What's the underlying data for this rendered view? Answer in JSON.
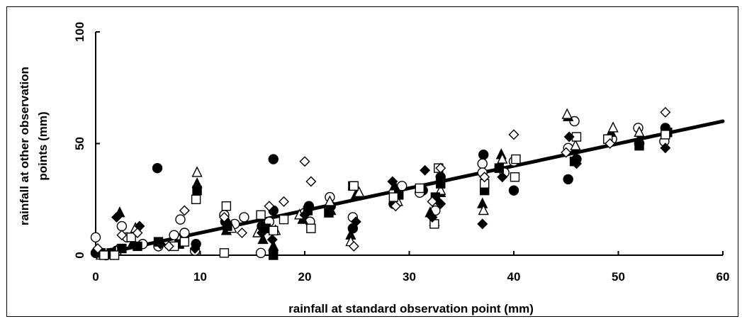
{
  "chart_data": {
    "type": "scatter",
    "xlabel": "rainfall at standard observation point (mm)",
    "ylabel_lines": [
      "rainfall at other observation",
      "points (mm)"
    ],
    "xlim": [
      0,
      60
    ],
    "ylim": [
      0,
      100
    ],
    "x_ticks": [
      0,
      10,
      20,
      30,
      40,
      50,
      60
    ],
    "y_ticks": [
      0,
      50,
      100
    ],
    "x_tick_labels": [
      "0",
      "10",
      "20",
      "30",
      "40",
      "50",
      "60"
    ],
    "y_tick_labels": [
      "0",
      "50",
      "100"
    ],
    "grid": false,
    "legend": "none",
    "trend_line": {
      "x": [
        0,
        60
      ],
      "y": [
        0,
        60
      ]
    },
    "series": [
      {
        "marker": "filled-circle",
        "points": [
          [
            0,
            1
          ],
          [
            1,
            0
          ],
          [
            2,
            2
          ],
          [
            5.9,
            39
          ],
          [
            9.6,
            5
          ],
          [
            12.4,
            15
          ],
          [
            15.9,
            13
          ],
          [
            17,
            43
          ],
          [
            17,
            20
          ],
          [
            20.4,
            22
          ],
          [
            22.5,
            22
          ],
          [
            24.6,
            12
          ],
          [
            28.5,
            23
          ],
          [
            31.3,
            29
          ],
          [
            33,
            35
          ],
          [
            37.1,
            45
          ],
          [
            40,
            29
          ],
          [
            45.2,
            34
          ],
          [
            46,
            43
          ],
          [
            52,
            50
          ],
          [
            54.5,
            57
          ]
        ]
      },
      {
        "marker": "open-circle",
        "points": [
          [
            0,
            8
          ],
          [
            0.5,
            1
          ],
          [
            1.5,
            1
          ],
          [
            2.5,
            13
          ],
          [
            3,
            8
          ],
          [
            4.5,
            5
          ],
          [
            6,
            4
          ],
          [
            7.5,
            9
          ],
          [
            8.1,
            16
          ],
          [
            8.5,
            10
          ],
          [
            9.5,
            2
          ],
          [
            12.3,
            18
          ],
          [
            13.3,
            14
          ],
          [
            14.2,
            17
          ],
          [
            15.8,
            1
          ],
          [
            16.6,
            15
          ],
          [
            20,
            19
          ],
          [
            20.5,
            15
          ],
          [
            22.4,
            26
          ],
          [
            24.6,
            17
          ],
          [
            28.5,
            28
          ],
          [
            29.3,
            31
          ],
          [
            31,
            28
          ],
          [
            32.5,
            20
          ],
          [
            37,
            41
          ],
          [
            37,
            37
          ],
          [
            39.1,
            37
          ],
          [
            40,
            42
          ],
          [
            45.2,
            48
          ],
          [
            45.8,
            60
          ],
          [
            49.4,
            52
          ],
          [
            51.9,
            57
          ],
          [
            54.4,
            51
          ]
        ]
      },
      {
        "marker": "filled-triangle",
        "points": [
          [
            2.3,
            19
          ],
          [
            3.5,
            5
          ],
          [
            9.7,
            32
          ],
          [
            12.5,
            11
          ],
          [
            16,
            7
          ],
          [
            17,
            4
          ],
          [
            19.8,
            16
          ],
          [
            22.5,
            20
          ],
          [
            24.4,
            9
          ],
          [
            24.9,
            27
          ],
          [
            28.6,
            31
          ],
          [
            32,
            19
          ],
          [
            33,
            28
          ],
          [
            37,
            23
          ],
          [
            38.8,
            45
          ],
          [
            45.2,
            62
          ],
          [
            46,
            48
          ],
          [
            49.3,
            55
          ],
          [
            52,
            52
          ]
        ]
      },
      {
        "marker": "open-triangle",
        "points": [
          [
            0.5,
            0
          ],
          [
            2,
            2
          ],
          [
            3.8,
            12
          ],
          [
            8,
            7
          ],
          [
            9.7,
            37
          ],
          [
            13,
            12
          ],
          [
            15.5,
            10
          ],
          [
            17.2,
            11
          ],
          [
            19.5,
            18
          ],
          [
            22.4,
            24
          ],
          [
            24.4,
            6
          ],
          [
            25.2,
            28
          ],
          [
            28.9,
            24
          ],
          [
            32.4,
            15
          ],
          [
            33,
            29
          ],
          [
            37.1,
            20
          ],
          [
            38.9,
            43
          ],
          [
            45.1,
            63
          ],
          [
            45.9,
            49
          ],
          [
            49.5,
            57
          ],
          [
            52,
            55
          ]
        ]
      },
      {
        "marker": "filled-square",
        "points": [
          [
            0.5,
            1
          ],
          [
            1.5,
            1
          ],
          [
            2.5,
            3
          ],
          [
            4,
            4
          ],
          [
            6,
            6
          ],
          [
            8,
            5
          ],
          [
            9.7,
            29
          ],
          [
            12.6,
            13
          ],
          [
            16.3,
            12
          ],
          [
            17,
            0
          ],
          [
            20.3,
            20
          ],
          [
            22.3,
            19
          ],
          [
            24.6,
            31
          ],
          [
            29,
            27
          ],
          [
            32.5,
            26
          ],
          [
            33,
            32
          ],
          [
            37.2,
            29
          ],
          [
            38.6,
            39
          ],
          [
            45.8,
            42
          ],
          [
            52,
            49
          ],
          [
            54.7,
            55
          ]
        ]
      },
      {
        "marker": "open-square",
        "points": [
          [
            0.8,
            0
          ],
          [
            1.8,
            0
          ],
          [
            3.4,
            8
          ],
          [
            7.5,
            4
          ],
          [
            8.5,
            6
          ],
          [
            9.6,
            25
          ],
          [
            12.3,
            1
          ],
          [
            12.5,
            22
          ],
          [
            15.8,
            18
          ],
          [
            17,
            11
          ],
          [
            18,
            16
          ],
          [
            20.6,
            12
          ],
          [
            24.7,
            31
          ],
          [
            28.5,
            26
          ],
          [
            31,
            30
          ],
          [
            32.4,
            14
          ],
          [
            32.8,
            39
          ],
          [
            37.2,
            32
          ],
          [
            40.1,
            35
          ],
          [
            40.2,
            43
          ],
          [
            46,
            53
          ],
          [
            49,
            52
          ],
          [
            54.5,
            54
          ]
        ]
      },
      {
        "marker": "filled-diamond",
        "points": [
          [
            2,
            17
          ],
          [
            4.2,
            13
          ],
          [
            6.2,
            5
          ],
          [
            9.5,
            3
          ],
          [
            12.5,
            14
          ],
          [
            15.9,
            10
          ],
          [
            16.9,
            7
          ],
          [
            20,
            18
          ],
          [
            24.9,
            15
          ],
          [
            28.4,
            33
          ],
          [
            31.5,
            38
          ],
          [
            32.2,
            17
          ],
          [
            33,
            23
          ],
          [
            37,
            14
          ],
          [
            38.9,
            35
          ],
          [
            45.3,
            53
          ],
          [
            46,
            41
          ],
          [
            52,
            50
          ],
          [
            54.5,
            48
          ]
        ]
      },
      {
        "marker": "open-diamond",
        "points": [
          [
            0.2,
            3
          ],
          [
            2.5,
            9
          ],
          [
            4,
            10
          ],
          [
            7,
            4
          ],
          [
            8.5,
            20
          ],
          [
            12.3,
            17
          ],
          [
            14,
            10
          ],
          [
            16.6,
            22
          ],
          [
            18,
            24
          ],
          [
            20,
            42
          ],
          [
            20.6,
            33
          ],
          [
            24.7,
            4
          ],
          [
            28.7,
            22
          ],
          [
            32.2,
            24
          ],
          [
            33,
            39
          ],
          [
            37.2,
            35
          ],
          [
            40,
            54
          ],
          [
            45,
            46
          ],
          [
            49.2,
            50
          ],
          [
            54.5,
            64
          ]
        ]
      }
    ]
  }
}
